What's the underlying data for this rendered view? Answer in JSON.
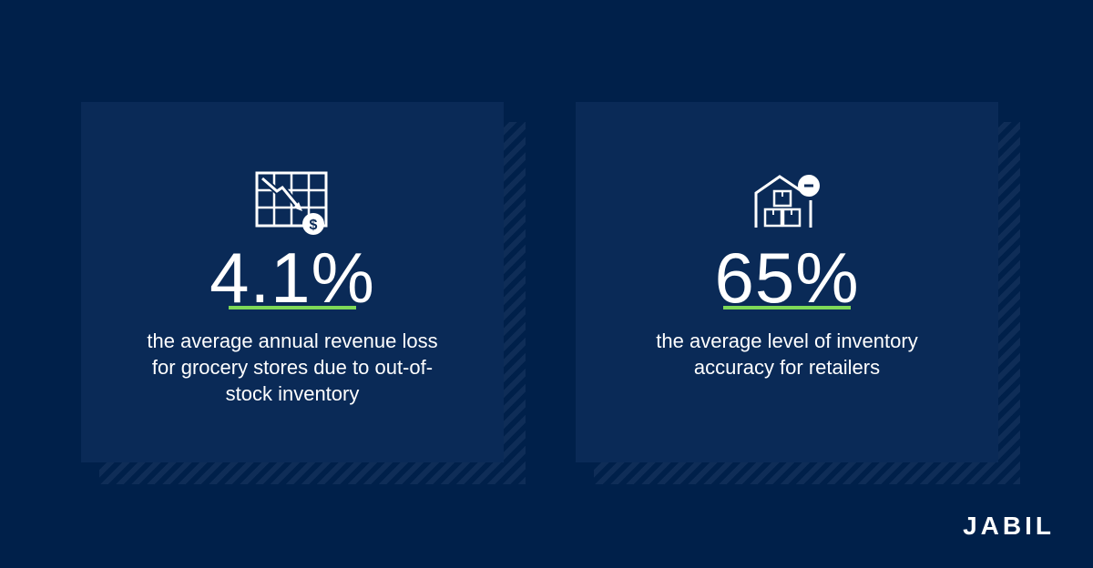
{
  "stats": [
    {
      "value": "4.1%",
      "description": "the average annual revenue loss for grocery stores due to out-of-stock inventory",
      "icon": "grid-chart-down-dollar-icon"
    },
    {
      "value": "65%",
      "description": "the average level of inventory accuracy for retailers",
      "icon": "warehouse-boxes-minus-icon"
    }
  ],
  "brand": {
    "logo_text": "JABIL"
  },
  "colors": {
    "background": "#00204a",
    "card": "#0a2a57",
    "accent": "#7ed957"
  }
}
